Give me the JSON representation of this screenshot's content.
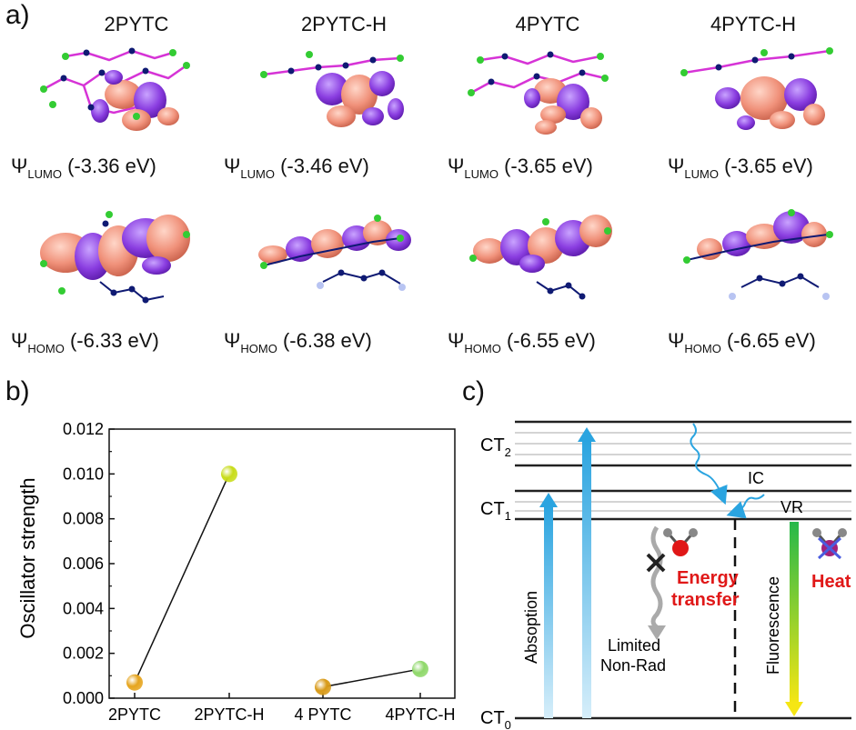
{
  "panel_a": {
    "label": "a)",
    "molecules": [
      "2PYTC",
      "2PYTC-H",
      "4PYTC",
      "4PYTC-H"
    ],
    "lumo": [
      {
        "psi": "Ψ",
        "orbital": "LUMO",
        "value": " (-3.36 eV)"
      },
      {
        "psi": "Ψ",
        "orbital": "LUMO",
        "value": " (-3.46 eV)"
      },
      {
        "psi": "Ψ",
        "orbital": "LUMO",
        "value": " (-3.65 eV)"
      },
      {
        "psi": "Ψ",
        "orbital": "LUMO",
        "value": " (-3.65 eV)"
      }
    ],
    "homo": [
      {
        "psi": "Ψ",
        "orbital": "HOMO",
        "value": " (-6.33 eV)"
      },
      {
        "psi": "Ψ",
        "orbital": "HOMO",
        "value": " (-6.38 eV)"
      },
      {
        "psi": "Ψ",
        "orbital": "HOMO",
        "value": " (-6.55 eV)"
      },
      {
        "psi": "Ψ",
        "orbital": "HOMO",
        "value": " (-6.65 eV)"
      }
    ],
    "colors": {
      "lobe_pos": "#f0917a",
      "lobe_neg": "#8a3de0",
      "atom_c": "#0f1a73",
      "atom_f": "#33cc33",
      "atom_n": "#b8c4f2",
      "bond": "#d633d6"
    }
  },
  "panel_b": {
    "label": "b)",
    "chart_data": {
      "type": "scatter",
      "categories": [
        "2PYTC",
        "2PYTC-H",
        "4 PYTC",
        "4PYTC-H"
      ],
      "values": [
        0.0007,
        0.01,
        0.0005,
        0.0013
      ],
      "point_colors": [
        "#e6a51e",
        "#c8dc1a",
        "#d89a18",
        "#8fd86a"
      ],
      "connections": [
        [
          0,
          1
        ],
        [
          2,
          3
        ]
      ],
      "ylabel": "Oscillator strength",
      "xlabel": "",
      "ylim": [
        0,
        0.012
      ],
      "yticks": [
        "0.000",
        "0.002",
        "0.004",
        "0.006",
        "0.008",
        "0.010",
        "0.012"
      ],
      "grid": false
    }
  },
  "panel_c": {
    "label": "c)",
    "levels": {
      "ct2": "CT",
      "ct2_sub": "2",
      "ct1": "CT",
      "ct1_sub": "1",
      "ct0": "CT",
      "ct0_sub": "0"
    },
    "labels": {
      "absorption": "Absoption",
      "ic": "IC",
      "vr": "VR",
      "energy_transfer_1": "Energy",
      "energy_transfer_2": "transfer",
      "limited_1": "Limited",
      "limited_2": "Non-Rad",
      "fluorescence": "Fluorescence",
      "heat": "Heat"
    },
    "colors": {
      "absorption_arrow": "#2aa4e0",
      "highlight_text": "#e01818",
      "fluor_top": "#26b84a",
      "fluor_bottom": "#f5e614",
      "molecule_o": "#e01818",
      "molecule_h": "#888888",
      "heat_mol": "#a3217a",
      "heat_cross": "#4a5ce0"
    }
  }
}
